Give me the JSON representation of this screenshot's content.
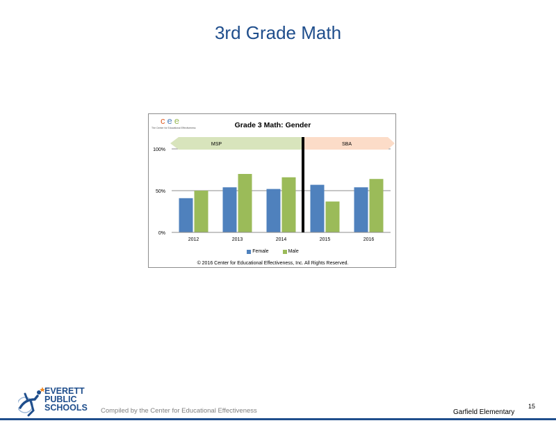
{
  "slide": {
    "title": "3rd Grade Math",
    "compiled_by": "Compiled by the Center for Educational Effectiveness",
    "school": "Garfield Elementary",
    "page_number": "15"
  },
  "logo": {
    "lines": [
      "EVERETT",
      "PUBLIC",
      "SCHOOLS"
    ]
  },
  "cee_logo": {
    "letters": [
      "c",
      "e",
      "e"
    ],
    "tagline": "The Center for Educational Effectiveness"
  },
  "chart_data": {
    "type": "bar",
    "title": "Grade 3 Math: Gender",
    "categories": [
      "2012",
      "2013",
      "2014",
      "2015",
      "2016"
    ],
    "series": [
      {
        "name": "Female",
        "color": "#4f81bd",
        "values": [
          41,
          54,
          52,
          57,
          54
        ]
      },
      {
        "name": "Male",
        "color": "#9bbb59",
        "values": [
          50,
          70,
          66,
          37,
          64
        ]
      }
    ],
    "ylim": [
      0,
      100
    ],
    "yticks": [
      "0%",
      "50%",
      "100%"
    ],
    "grid": true,
    "legend_position": "bottom",
    "assessment_bands": [
      {
        "label": "MSP",
        "color": "#d8e4bc"
      },
      {
        "label": "SBA",
        "color": "#fcdcc8"
      }
    ],
    "divider_after_category": "2014",
    "copyright": "© 2016 Center for Educational Effectiveness, Inc. All Rights Reserved."
  }
}
